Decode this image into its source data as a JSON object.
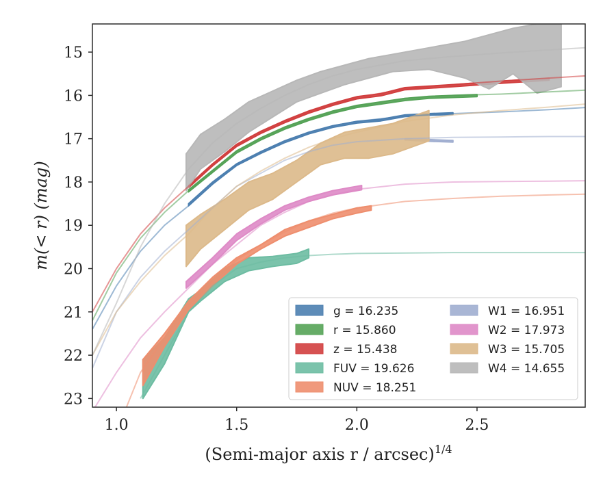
{
  "chart_data": {
    "type": "line",
    "xlabel": "(Semi-major axis r / arcsec)",
    "xlabel_sup": "1/4",
    "ylabel": "m(< r) (mag)",
    "xlim": [
      0.9,
      2.95
    ],
    "ylim": [
      23.2,
      14.35
    ],
    "y_inverted": true,
    "x_ticks": [
      1.0,
      1.5,
      2.0,
      2.5
    ],
    "x_tick_labels": [
      "1.0",
      "1.5",
      "2.0",
      "2.5"
    ],
    "y_ticks": [
      15,
      16,
      17,
      18,
      19,
      20,
      21,
      22,
      23
    ],
    "y_tick_labels": [
      "15",
      "16",
      "17",
      "18",
      "19",
      "20",
      "21",
      "22",
      "23"
    ],
    "grid": false,
    "legend_position": "lower-right",
    "legend_columns": 2,
    "series": [
      {
        "id": "g",
        "label": "g = 16.235",
        "color": "#4c7fb0",
        "model": {
          "x": [
            0.9,
            1.0,
            1.1,
            1.2,
            1.3,
            1.4,
            1.5,
            1.6,
            1.7,
            1.8,
            1.9,
            2.0,
            2.2,
            2.4,
            2.6,
            2.8,
            2.95
          ],
          "y": [
            21.4,
            20.4,
            19.6,
            19.0,
            18.55,
            18.05,
            17.6,
            17.3,
            17.05,
            16.85,
            16.7,
            16.6,
            16.48,
            16.42,
            16.38,
            16.33,
            16.28
          ]
        },
        "band": {
          "x": [
            1.3,
            1.4,
            1.5,
            1.6,
            1.7,
            1.8,
            1.9,
            2.0,
            2.1,
            2.2,
            2.3,
            2.4
          ],
          "y1": [
            18.5,
            18.0,
            17.58,
            17.3,
            17.05,
            16.85,
            16.7,
            16.6,
            16.55,
            16.45,
            16.42,
            16.4
          ],
          "y2": [
            18.55,
            18.05,
            17.62,
            17.34,
            17.09,
            16.89,
            16.74,
            16.64,
            16.59,
            16.49,
            16.46,
            16.44
          ]
        }
      },
      {
        "id": "r",
        "label": "r = 15.860",
        "color": "#55a357",
        "model": {
          "x": [
            0.9,
            1.0,
            1.1,
            1.2,
            1.3,
            1.4,
            1.5,
            1.6,
            1.7,
            1.8,
            1.9,
            2.0,
            2.2,
            2.4,
            2.6,
            2.8,
            2.95
          ],
          "y": [
            21.2,
            20.1,
            19.3,
            18.7,
            18.2,
            17.75,
            17.3,
            17.0,
            16.75,
            16.55,
            16.38,
            16.25,
            16.07,
            16.0,
            15.97,
            15.92,
            15.88
          ]
        },
        "band": {
          "x": [
            1.3,
            1.4,
            1.5,
            1.6,
            1.7,
            1.8,
            1.9,
            2.0,
            2.1,
            2.2,
            2.3,
            2.5
          ],
          "y1": [
            18.18,
            17.73,
            17.28,
            16.98,
            16.73,
            16.53,
            16.36,
            16.23,
            16.15,
            16.07,
            16.02,
            15.98
          ],
          "y2": [
            18.23,
            17.78,
            17.33,
            17.03,
            16.78,
            16.58,
            16.41,
            16.28,
            16.2,
            16.12,
            16.07,
            16.03
          ]
        }
      },
      {
        "id": "z",
        "label": "z = 15.438",
        "color": "#d13f3f",
        "model": {
          "x": [
            0.9,
            1.0,
            1.1,
            1.2,
            1.3,
            1.4,
            1.5,
            1.6,
            1.7,
            1.8,
            1.9,
            2.0,
            2.2,
            2.4,
            2.6,
            2.8,
            2.95
          ],
          "y": [
            21.0,
            20.0,
            19.2,
            18.6,
            18.1,
            17.6,
            17.15,
            16.85,
            16.6,
            16.38,
            16.2,
            16.05,
            15.85,
            15.75,
            15.67,
            15.6,
            15.55
          ]
        },
        "band": {
          "x": [
            1.3,
            1.4,
            1.5,
            1.6,
            1.7,
            1.8,
            1.9,
            2.0,
            2.1,
            2.2,
            2.4,
            2.6,
            2.8
          ],
          "y1": [
            18.08,
            17.58,
            17.13,
            16.83,
            16.58,
            16.36,
            16.18,
            16.03,
            15.96,
            15.82,
            15.75,
            15.67,
            15.6
          ],
          "y2": [
            18.13,
            17.63,
            17.18,
            16.88,
            16.63,
            16.41,
            16.23,
            16.08,
            16.01,
            15.87,
            15.8,
            15.72,
            15.65
          ]
        }
      },
      {
        "id": "FUV",
        "label": "FUV = 19.626",
        "color": "#6dbca2",
        "model": {
          "x": [
            1.1,
            1.2,
            1.3,
            1.4,
            1.5,
            1.6,
            1.7,
            1.8,
            1.9,
            2.0,
            2.2,
            2.4,
            2.6,
            2.8,
            2.95
          ],
          "y": [
            23.0,
            22.0,
            21.0,
            20.4,
            20.0,
            19.85,
            19.75,
            19.7,
            19.67,
            19.65,
            19.64,
            19.63,
            19.63,
            19.63,
            19.63
          ]
        },
        "band": {
          "x": [
            1.11,
            1.2,
            1.3,
            1.35,
            1.45,
            1.55,
            1.65,
            1.75,
            1.8
          ],
          "y1": [
            22.1,
            21.6,
            20.7,
            20.5,
            20.0,
            19.75,
            19.72,
            19.65,
            19.55
          ],
          "y2": [
            23.0,
            22.2,
            21.0,
            20.75,
            20.3,
            20.05,
            19.95,
            19.88,
            19.75
          ]
        }
      },
      {
        "id": "NUV",
        "label": "NUV = 18.251",
        "color": "#ee8e6e",
        "model": {
          "x": [
            1.02,
            1.1,
            1.2,
            1.3,
            1.4,
            1.5,
            1.6,
            1.7,
            1.8,
            1.9,
            2.0,
            2.2,
            2.4,
            2.6,
            2.8,
            2.95
          ],
          "y": [
            23.5,
            22.4,
            21.6,
            20.85,
            20.3,
            19.8,
            19.45,
            19.15,
            18.9,
            18.72,
            18.6,
            18.45,
            18.38,
            18.33,
            18.3,
            18.28
          ]
        },
        "band": {
          "x": [
            1.11,
            1.2,
            1.3,
            1.4,
            1.5,
            1.6,
            1.7,
            1.8,
            1.9,
            2.0,
            2.06
          ],
          "y1": [
            22.1,
            21.5,
            20.75,
            20.2,
            19.75,
            19.45,
            19.1,
            18.9,
            18.75,
            18.6,
            18.55
          ],
          "y2": [
            22.7,
            21.8,
            20.95,
            20.4,
            19.9,
            19.55,
            19.25,
            19.05,
            18.85,
            18.72,
            18.65
          ]
        }
      },
      {
        "id": "W1",
        "label": "W1 = 16.951",
        "color": "#a0aed0",
        "model": {
          "x": [
            0.9,
            1.0,
            1.1,
            1.2,
            1.3,
            1.4,
            1.5,
            1.6,
            1.7,
            1.8,
            1.9,
            2.0,
            2.2,
            2.4,
            2.6,
            2.8,
            2.95
          ],
          "y": [
            22.3,
            21.0,
            20.2,
            19.6,
            19.1,
            18.6,
            18.1,
            17.8,
            17.5,
            17.3,
            17.15,
            17.07,
            17.0,
            16.97,
            16.96,
            16.95,
            16.95
          ]
        },
        "band": {
          "x": [
            2.2,
            2.3,
            2.4
          ],
          "y1": [
            17.0,
            17.02,
            17.04
          ],
          "y2": [
            17.03,
            17.06,
            17.08
          ]
        }
      },
      {
        "id": "W2",
        "label": "W2 = 17.973",
        "color": "#de8ac6",
        "model": {
          "x": [
            0.9,
            1.0,
            1.1,
            1.2,
            1.3,
            1.4,
            1.5,
            1.6,
            1.7,
            1.8,
            1.9,
            2.0,
            2.2,
            2.4,
            2.6,
            2.8,
            2.95
          ],
          "y": [
            23.3,
            22.4,
            21.6,
            21.0,
            20.45,
            19.9,
            19.45,
            19.0,
            18.7,
            18.45,
            18.3,
            18.17,
            18.05,
            18.0,
            17.99,
            17.98,
            17.97
          ]
        },
        "band": {
          "x": [
            1.29,
            1.4,
            1.5,
            1.6,
            1.7,
            1.8,
            1.9,
            2.0,
            2.02
          ],
          "y1": [
            20.3,
            19.75,
            19.2,
            18.85,
            18.55,
            18.35,
            18.2,
            18.1,
            18.08
          ],
          "y2": [
            20.45,
            19.9,
            19.35,
            18.97,
            18.65,
            18.45,
            18.3,
            18.2,
            18.18
          ]
        }
      },
      {
        "id": "W3",
        "label": "W3 = 15.705",
        "color": "#dcb98a",
        "model": {
          "x": [
            0.9,
            1.0,
            1.1,
            1.2,
            1.3,
            1.4,
            1.5,
            1.6,
            1.7,
            1.8,
            1.9,
            2.0,
            2.2,
            2.4,
            2.6,
            2.8,
            2.95
          ],
          "y": [
            22.0,
            21.0,
            20.3,
            19.7,
            19.2,
            18.6,
            18.1,
            17.75,
            17.45,
            17.2,
            17.0,
            16.85,
            16.6,
            16.45,
            16.35,
            16.27,
            16.2
          ]
        },
        "band": {
          "x": [
            1.29,
            1.35,
            1.45,
            1.55,
            1.65,
            1.75,
            1.85,
            1.95,
            2.05,
            2.15,
            2.3
          ],
          "y1": [
            19.0,
            18.75,
            18.4,
            18.0,
            17.8,
            17.5,
            17.1,
            16.85,
            16.75,
            16.65,
            16.35
          ],
          "y2": [
            19.95,
            19.55,
            19.1,
            18.65,
            18.4,
            18.0,
            17.6,
            17.45,
            17.45,
            17.35,
            17.05
          ]
        }
      },
      {
        "id": "W4",
        "label": "W4 = 14.655",
        "color": "#b7b7b7",
        "model": {
          "x": [
            0.9,
            1.0,
            1.1,
            1.2,
            1.3,
            1.4,
            1.5,
            1.6,
            1.7,
            1.8,
            1.9,
            2.0,
            2.2,
            2.4,
            2.6,
            2.8,
            2.95
          ],
          "y": [
            22.0,
            20.8,
            19.5,
            18.5,
            17.7,
            17.1,
            16.65,
            16.3,
            16.0,
            15.75,
            15.55,
            15.4,
            15.2,
            15.1,
            15.02,
            14.95,
            14.9
          ]
        },
        "band": {
          "x": [
            1.29,
            1.35,
            1.45,
            1.55,
            1.65,
            1.75,
            1.85,
            1.95,
            2.05,
            2.15,
            2.3,
            2.45,
            2.55,
            2.65,
            2.75,
            2.85
          ],
          "y1": [
            17.35,
            16.9,
            16.55,
            16.15,
            15.9,
            15.65,
            15.45,
            15.3,
            15.15,
            15.05,
            14.9,
            14.75,
            14.6,
            14.45,
            14.35,
            14.35
          ],
          "y2": [
            18.2,
            17.7,
            17.3,
            16.85,
            16.5,
            16.15,
            15.95,
            15.75,
            15.6,
            15.45,
            15.4,
            15.6,
            15.85,
            15.5,
            15.95,
            15.8
          ]
        }
      }
    ]
  }
}
